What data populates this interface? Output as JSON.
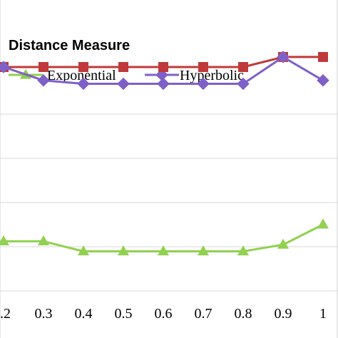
{
  "chart_data": {
    "type": "line",
    "title": "Distance Measure",
    "x_tick_labels": [
      ".2",
      "0.3",
      "0.4",
      "0.5",
      "0.6",
      "0.7",
      "0.8",
      "0.9",
      "1"
    ],
    "x": [
      0.2,
      0.3,
      0.4,
      0.5,
      0.6,
      0.7,
      0.8,
      0.9,
      1.0
    ],
    "ylim": [
      0,
      1
    ],
    "grid": true,
    "legend_placement": "top-left",
    "series": [
      {
        "name": "Exponential",
        "color": "#92D050",
        "marker": "triangle",
        "values": [
          0.28,
          0.28,
          0.25,
          0.25,
          0.25,
          0.25,
          0.25,
          0.27,
          0.33
        ]
      },
      {
        "name": "Hyperbolic",
        "color": "#7F60C8",
        "marker": "diamond",
        "values": [
          0.8,
          0.76,
          0.75,
          0.75,
          0.75,
          0.75,
          0.75,
          0.83,
          0.76
        ]
      },
      {
        "name": "",
        "color": "#C0393B",
        "marker": "square",
        "values": [
          0.8,
          0.8,
          0.8,
          0.8,
          0.8,
          0.8,
          0.8,
          0.83,
          0.83
        ]
      }
    ]
  }
}
